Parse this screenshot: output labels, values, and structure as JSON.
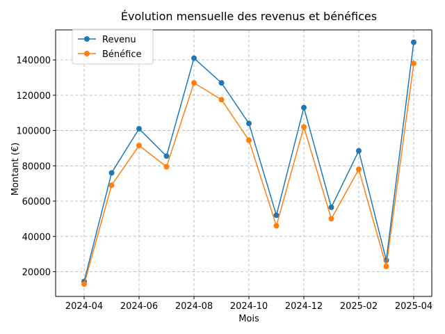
{
  "chart_data": {
    "type": "line",
    "title": "Évolution mensuelle des revenus et bénéfices",
    "xlabel": "Mois",
    "ylabel": "Montant (€)",
    "x": [
      "2024-04",
      "2024-05",
      "2024-06",
      "2024-07",
      "2024-08",
      "2024-09",
      "2024-10",
      "2024-11",
      "2024-12",
      "2025-01",
      "2025-02",
      "2025-03",
      "2025-04"
    ],
    "x_ticks": [
      "2024-04",
      "2024-06",
      "2024-08",
      "2024-10",
      "2024-12",
      "2025-02",
      "2025-04"
    ],
    "y_ticks": [
      20000,
      40000,
      60000,
      80000,
      100000,
      120000,
      140000
    ],
    "ylim": [
      6000,
      157000
    ],
    "grid": true,
    "legend_position": "top-left",
    "series": [
      {
        "name": "Revenu",
        "color": "#1f77b4",
        "values": [
          14500,
          76000,
          101000,
          85500,
          141000,
          127000,
          104000,
          52000,
          113000,
          56500,
          88500,
          26500,
          150000
        ]
      },
      {
        "name": "Bénéfice",
        "color": "#ff7f0e",
        "values": [
          13000,
          69000,
          91500,
          79500,
          127000,
          117500,
          94500,
          46000,
          102000,
          50000,
          78000,
          23000,
          138000
        ]
      }
    ]
  }
}
